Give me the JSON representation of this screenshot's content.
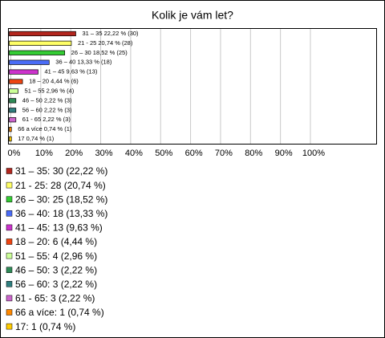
{
  "chart_data": {
    "type": "bar",
    "orientation": "horizontal",
    "title": "Kolik je vám let?",
    "categories": [
      "31 – 35",
      "21 - 25",
      "26 – 30",
      "36 – 40",
      "41 – 45",
      "18 – 20",
      "51 – 55",
      "46 – 50",
      "56 – 60",
      "61 - 65",
      "66 a více",
      "17"
    ],
    "values": [
      22.22,
      20.74,
      18.52,
      13.33,
      9.63,
      4.44,
      2.96,
      2.22,
      2.22,
      2.22,
      0.74,
      0.74
    ],
    "value_labels": [
      "31 – 35 22,22 % (30)",
      "21 - 25 20,74 % (28)",
      "26 – 30 18,52 % (25)",
      "36 – 40 13,33 % (18)",
      "41 – 45 9,63 % (13)",
      "18 – 20 4,44 % (6)",
      "51 – 55 2,96 % (4)",
      "46 – 50 2,22 % (3)",
      "56 – 60 2,22 % (3)",
      "61 - 65 2,22 % (3)",
      "66 a více 0,74 % (1)",
      "17 0,74 % (1)"
    ],
    "legend": [
      "31 – 35: 30 (22,22 %)",
      "21 - 25: 28 (20,74 %)",
      "26 – 30: 25 (18,52 %)",
      "36 – 40: 18 (13,33 %)",
      "41 – 45: 13 (9,63 %)",
      "18 – 20: 6 (4,44 %)",
      "51 – 55: 4 (2,96 %)",
      "46 – 50: 3 (2,22 %)",
      "56 – 60: 3 (2,22 %)",
      "61 - 65: 3 (2,22 %)",
      "66 a více: 1 (0,74 %)",
      "17: 1 (0,74 %)"
    ],
    "colors": [
      "#b3261e",
      "#ffff66",
      "#33cc33",
      "#4a6cf7",
      "#cc33cc",
      "#ee4411",
      "#ccff99",
      "#2e8b57",
      "#2f7f7f",
      "#cc66cc",
      "#ff8800",
      "#ffcc00"
    ],
    "xlim": [
      0,
      100
    ],
    "xticks": [
      {
        "value": 0,
        "label": "0%"
      },
      {
        "value": 10,
        "label": "10%"
      },
      {
        "value": 20,
        "label": "20%"
      },
      {
        "value": 30,
        "label": "30%"
      },
      {
        "value": 40,
        "label": "40%"
      },
      {
        "value": 50,
        "label": "50%"
      },
      {
        "value": 60,
        "label": "60%"
      },
      {
        "value": 70,
        "label": "70%"
      },
      {
        "value": 80,
        "label": "80%"
      },
      {
        "value": 90,
        "label": "90%"
      },
      {
        "value": 100,
        "label": "100%"
      }
    ],
    "grid": true
  }
}
